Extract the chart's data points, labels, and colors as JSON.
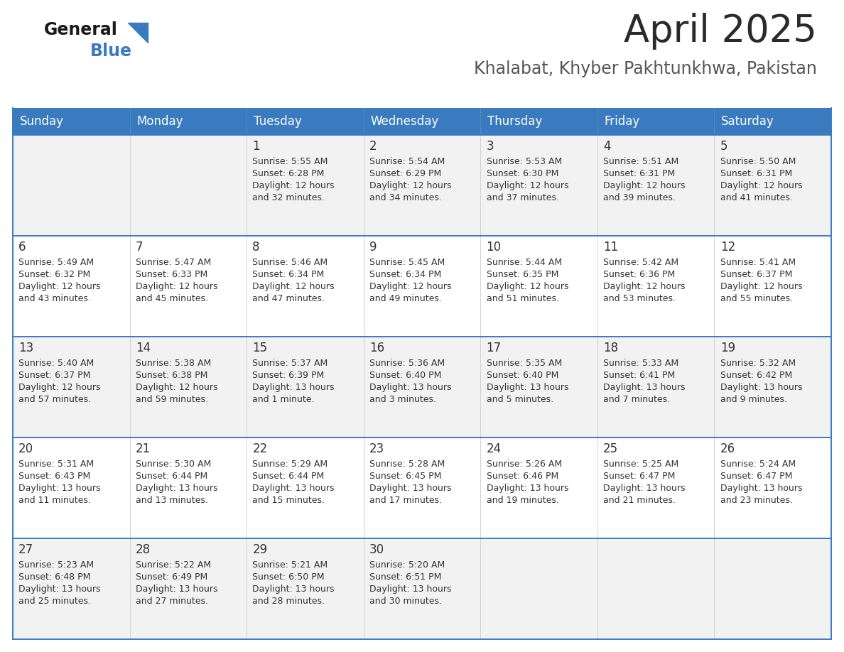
{
  "title": "April 2025",
  "subtitle": "Khalabat, Khyber Pakhtunkhwa, Pakistan",
  "header_color": "#3a7bbf",
  "header_text_color": "#ffffff",
  "bg_color": "#ffffff",
  "row_colors": [
    "#f2f2f2",
    "#ffffff",
    "#f2f2f2",
    "#ffffff",
    "#f2f2f2"
  ],
  "border_color": "#3a7bbf",
  "cell_line_color": "#cccccc",
  "text_color": "#333333",
  "days_of_week": [
    "Sunday",
    "Monday",
    "Tuesday",
    "Wednesday",
    "Thursday",
    "Friday",
    "Saturday"
  ],
  "calendar_data": [
    [
      {
        "day": "",
        "sunrise": "",
        "sunset": "",
        "daylight": ""
      },
      {
        "day": "",
        "sunrise": "",
        "sunset": "",
        "daylight": ""
      },
      {
        "day": "1",
        "sunrise": "5:55 AM",
        "sunset": "6:28 PM",
        "daylight": "12 hours and 32 minutes."
      },
      {
        "day": "2",
        "sunrise": "5:54 AM",
        "sunset": "6:29 PM",
        "daylight": "12 hours and 34 minutes."
      },
      {
        "day": "3",
        "sunrise": "5:53 AM",
        "sunset": "6:30 PM",
        "daylight": "12 hours and 37 minutes."
      },
      {
        "day": "4",
        "sunrise": "5:51 AM",
        "sunset": "6:31 PM",
        "daylight": "12 hours and 39 minutes."
      },
      {
        "day": "5",
        "sunrise": "5:50 AM",
        "sunset": "6:31 PM",
        "daylight": "12 hours and 41 minutes."
      }
    ],
    [
      {
        "day": "6",
        "sunrise": "5:49 AM",
        "sunset": "6:32 PM",
        "daylight": "12 hours and 43 minutes."
      },
      {
        "day": "7",
        "sunrise": "5:47 AM",
        "sunset": "6:33 PM",
        "daylight": "12 hours and 45 minutes."
      },
      {
        "day": "8",
        "sunrise": "5:46 AM",
        "sunset": "6:34 PM",
        "daylight": "12 hours and 47 minutes."
      },
      {
        "day": "9",
        "sunrise": "5:45 AM",
        "sunset": "6:34 PM",
        "daylight": "12 hours and 49 minutes."
      },
      {
        "day": "10",
        "sunrise": "5:44 AM",
        "sunset": "6:35 PM",
        "daylight": "12 hours and 51 minutes."
      },
      {
        "day": "11",
        "sunrise": "5:42 AM",
        "sunset": "6:36 PM",
        "daylight": "12 hours and 53 minutes."
      },
      {
        "day": "12",
        "sunrise": "5:41 AM",
        "sunset": "6:37 PM",
        "daylight": "12 hours and 55 minutes."
      }
    ],
    [
      {
        "day": "13",
        "sunrise": "5:40 AM",
        "sunset": "6:37 PM",
        "daylight": "12 hours and 57 minutes."
      },
      {
        "day": "14",
        "sunrise": "5:38 AM",
        "sunset": "6:38 PM",
        "daylight": "12 hours and 59 minutes."
      },
      {
        "day": "15",
        "sunrise": "5:37 AM",
        "sunset": "6:39 PM",
        "daylight": "13 hours and 1 minute."
      },
      {
        "day": "16",
        "sunrise": "5:36 AM",
        "sunset": "6:40 PM",
        "daylight": "13 hours and 3 minutes."
      },
      {
        "day": "17",
        "sunrise": "5:35 AM",
        "sunset": "6:40 PM",
        "daylight": "13 hours and 5 minutes."
      },
      {
        "day": "18",
        "sunrise": "5:33 AM",
        "sunset": "6:41 PM",
        "daylight": "13 hours and 7 minutes."
      },
      {
        "day": "19",
        "sunrise": "5:32 AM",
        "sunset": "6:42 PM",
        "daylight": "13 hours and 9 minutes."
      }
    ],
    [
      {
        "day": "20",
        "sunrise": "5:31 AM",
        "sunset": "6:43 PM",
        "daylight": "13 hours and 11 minutes."
      },
      {
        "day": "21",
        "sunrise": "5:30 AM",
        "sunset": "6:44 PM",
        "daylight": "13 hours and 13 minutes."
      },
      {
        "day": "22",
        "sunrise": "5:29 AM",
        "sunset": "6:44 PM",
        "daylight": "13 hours and 15 minutes."
      },
      {
        "day": "23",
        "sunrise": "5:28 AM",
        "sunset": "6:45 PM",
        "daylight": "13 hours and 17 minutes."
      },
      {
        "day": "24",
        "sunrise": "5:26 AM",
        "sunset": "6:46 PM",
        "daylight": "13 hours and 19 minutes."
      },
      {
        "day": "25",
        "sunrise": "5:25 AM",
        "sunset": "6:47 PM",
        "daylight": "13 hours and 21 minutes."
      },
      {
        "day": "26",
        "sunrise": "5:24 AM",
        "sunset": "6:47 PM",
        "daylight": "13 hours and 23 minutes."
      }
    ],
    [
      {
        "day": "27",
        "sunrise": "5:23 AM",
        "sunset": "6:48 PM",
        "daylight": "13 hours and 25 minutes."
      },
      {
        "day": "28",
        "sunrise": "5:22 AM",
        "sunset": "6:49 PM",
        "daylight": "13 hours and 27 minutes."
      },
      {
        "day": "29",
        "sunrise": "5:21 AM",
        "sunset": "6:50 PM",
        "daylight": "13 hours and 28 minutes."
      },
      {
        "day": "30",
        "sunrise": "5:20 AM",
        "sunset": "6:51 PM",
        "daylight": "13 hours and 30 minutes."
      },
      {
        "day": "",
        "sunrise": "",
        "sunset": "",
        "daylight": ""
      },
      {
        "day": "",
        "sunrise": "",
        "sunset": "",
        "daylight": ""
      },
      {
        "day": "",
        "sunrise": "",
        "sunset": "",
        "daylight": ""
      }
    ]
  ],
  "title_fontsize": 38,
  "subtitle_fontsize": 17,
  "day_header_fontsize": 12,
  "day_num_fontsize": 12,
  "cell_text_fontsize": 9,
  "logo_general_fontsize": 17,
  "logo_blue_fontsize": 17
}
